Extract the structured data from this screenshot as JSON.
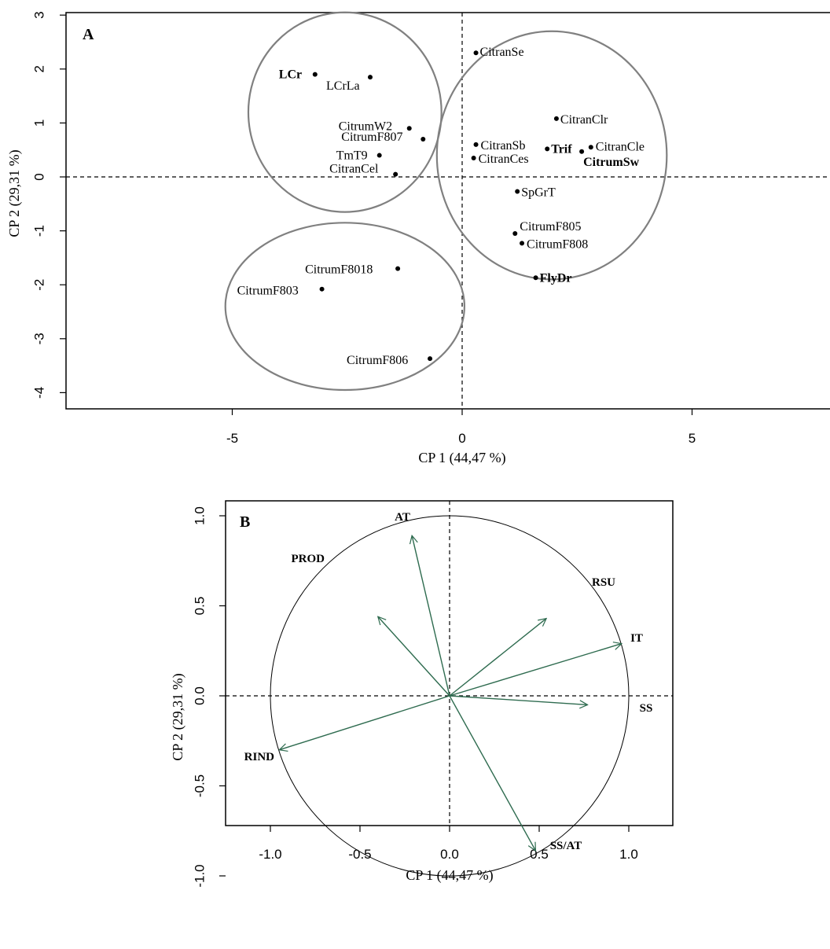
{
  "colors": {
    "points": "#000000",
    "clusters": "#808080",
    "arrows": "#2e6b4f",
    "circle": "#000000"
  },
  "chart_data": [
    {
      "type": "scatter",
      "panel": "A",
      "xlabel": "CP 1 (44,47 %)",
      "ylabel": "CP 2 (29,31 %)",
      "xlim": [
        -8.5,
        8.5
      ],
      "ylim": [
        -4.3,
        3.1
      ],
      "xticks": [
        "-5",
        "0",
        "5"
      ],
      "yticks": [
        "-4",
        "-3",
        "-2",
        "-1",
        "0",
        "1",
        "2",
        "3"
      ],
      "reference_lines": [
        "x = 0",
        "y = 0"
      ],
      "clusters": [
        {
          "cx": -2.55,
          "cy": 1.2,
          "rx": 2.1,
          "ry": 1.85
        },
        {
          "cx": 1.95,
          "cy": 0.4,
          "rx": 2.5,
          "ry": 2.3
        },
        {
          "cx": -2.55,
          "cy": -2.4,
          "rx": 2.6,
          "ry": 1.55
        }
      ],
      "points": [
        {
          "label": "LCr",
          "x": -3.2,
          "y": 1.9,
          "bold": true
        },
        {
          "label": "LCrLa",
          "x": -2.0,
          "y": 1.85,
          "bold": false
        },
        {
          "label": "CitrumW2",
          "x": -1.15,
          "y": 0.9,
          "bold": false
        },
        {
          "label": "CitrumF807",
          "x": -0.85,
          "y": 0.7,
          "bold": false
        },
        {
          "label": "TmT9",
          "x": -1.8,
          "y": 0.4,
          "bold": false
        },
        {
          "label": "CitranCel",
          "x": -1.45,
          "y": 0.05,
          "bold": false
        },
        {
          "label": "CitranSe",
          "x": 0.3,
          "y": 2.3,
          "bold": false
        },
        {
          "label": "CitranClr",
          "x": 2.05,
          "y": 1.08,
          "bold": false
        },
        {
          "label": "CitranSb",
          "x": 0.3,
          "y": 0.6,
          "bold": false
        },
        {
          "label": "CitranCes",
          "x": 0.25,
          "y": 0.35,
          "bold": false
        },
        {
          "label": "Trif",
          "x": 1.85,
          "y": 0.52,
          "bold": true
        },
        {
          "label": "CitranCle",
          "x": 2.8,
          "y": 0.55,
          "bold": false
        },
        {
          "label": "CitrumSw",
          "x": 2.6,
          "y": 0.47,
          "bold": true
        },
        {
          "label": "SpGrT",
          "x": 1.2,
          "y": -0.27,
          "bold": false
        },
        {
          "label": "CitrumF805",
          "x": 1.15,
          "y": -1.05,
          "bold": false
        },
        {
          "label": "CitrumF808",
          "x": 1.3,
          "y": -1.23,
          "bold": false
        },
        {
          "label": "FlyDr",
          "x": 1.6,
          "y": -1.87,
          "bold": true
        },
        {
          "label": "CitrumF8018",
          "x": -1.4,
          "y": -1.7,
          "bold": false
        },
        {
          "label": "CitrumF803",
          "x": -3.05,
          "y": -2.08,
          "bold": false
        },
        {
          "label": "CitrumF806",
          "x": -0.7,
          "y": -3.37,
          "bold": false
        }
      ]
    },
    {
      "type": "correlation-circle",
      "panel": "B",
      "xlabel": "CP 1 (44,47 %)",
      "ylabel": "CP 2 (29,31 %)",
      "xlim": [
        -1.25,
        1.25
      ],
      "ylim": [
        -1.08,
        1.08
      ],
      "xticks": [
        "-1.0",
        "-0.5",
        "0.0",
        "0.5",
        "1.0"
      ],
      "yticks": [
        "-1.0",
        "-0.5",
        "0.0",
        "0.5",
        "1.0"
      ],
      "reference_lines": [
        "x = 0",
        "y = 0"
      ],
      "circle_radius": 1.0,
      "variables": [
        {
          "label": "AT",
          "x": -0.21,
          "y": 0.89
        },
        {
          "label": "PROD",
          "x": -0.4,
          "y": 0.44
        },
        {
          "label": "RSU",
          "x": 0.54,
          "y": 0.43
        },
        {
          "label": "IT",
          "x": 0.96,
          "y": 0.29
        },
        {
          "label": "SS",
          "x": 0.77,
          "y": -0.05
        },
        {
          "label": "RIND",
          "x": -0.95,
          "y": -0.3
        },
        {
          "label": "SS/AT",
          "x": 0.48,
          "y": -0.86
        }
      ]
    }
  ]
}
